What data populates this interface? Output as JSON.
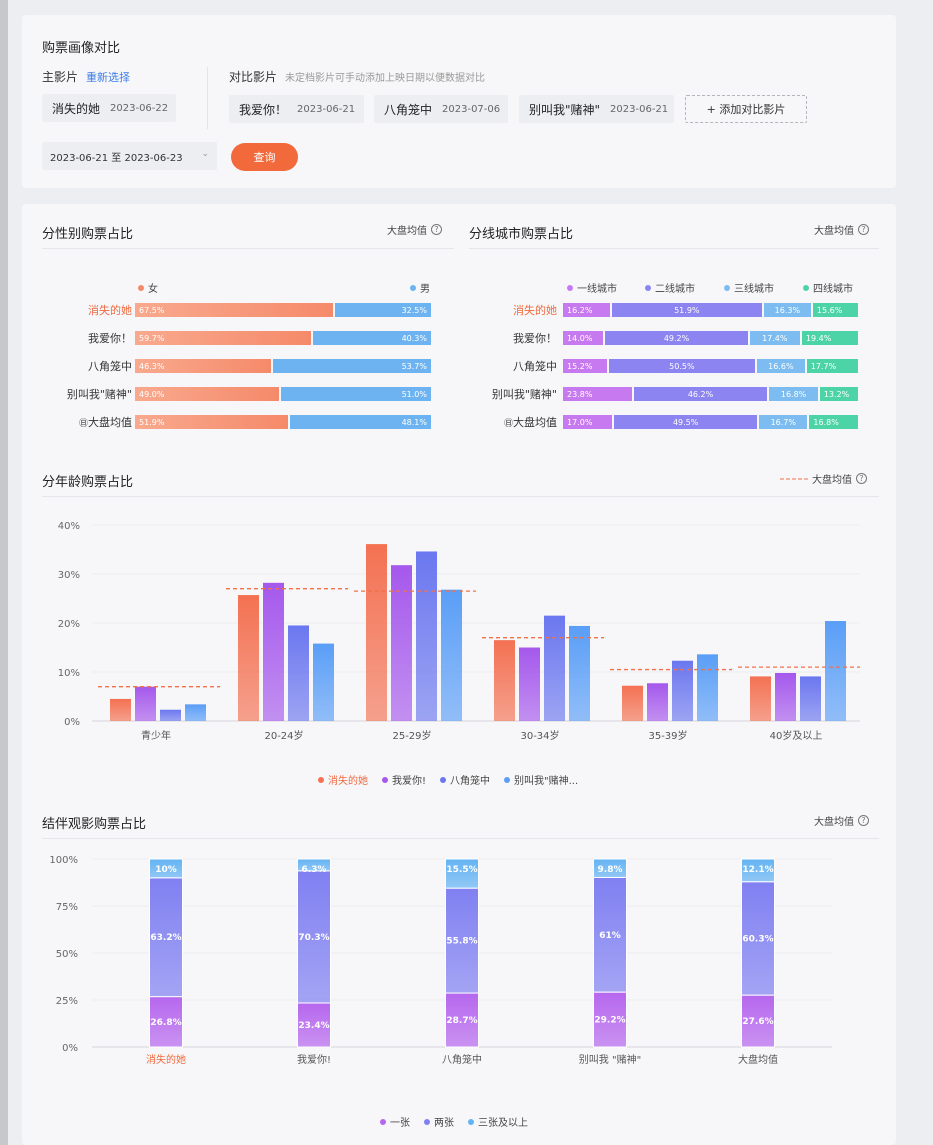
{
  "portrait": {
    "title": "购票画像对比",
    "main_label": "主影片",
    "reselect": "重新选择",
    "main_movie": {
      "name": "消失的她",
      "date": "2023-06-22"
    },
    "compare_label": "对比影片",
    "compare_hint": "未定档影片可手动添加上映日期以便数据对比",
    "compare_movies": [
      {
        "name": "我爱你！",
        "date": "2023-06-21"
      },
      {
        "name": "八角笼中",
        "date": "2023-07-06"
      },
      {
        "name": "别叫我\"赌神\"",
        "date": "2023-06-21"
      }
    ],
    "add_button": "+ 添加对比影片",
    "date_range": "2023-06-21 至 2023-06-23",
    "query_button": "查询"
  },
  "avg_label": "大盘均值",
  "gender": {
    "title": "分性别购票占比",
    "legend": [
      "女",
      "男"
    ],
    "colors": [
      "#f58a6a",
      "#6db3f2"
    ],
    "rows": [
      {
        "label": "消失的她",
        "values": [
          "67.5%",
          "32.5%"
        ],
        "fracs": [
          67.5,
          32.5
        ],
        "highlight": true
      },
      {
        "label": "我爱你！",
        "values": [
          "59.7%",
          "40.3%"
        ],
        "fracs": [
          59.7,
          40.3
        ]
      },
      {
        "label": "八角笼中",
        "values": [
          "46.3%",
          "53.7%"
        ],
        "fracs": [
          46.3,
          53.7
        ]
      },
      {
        "label": "别叫我\"赌神\"",
        "values": [
          "49.0%",
          "51.0%"
        ],
        "fracs": [
          49.0,
          51.0
        ]
      },
      {
        "label": "大盘均值",
        "values": [
          "51.9%",
          "48.1%"
        ],
        "fracs": [
          51.9,
          48.1
        ],
        "prefix": "㊐"
      }
    ]
  },
  "city": {
    "title": "分线城市购票占比",
    "legend": [
      "一线城市",
      "二线城市",
      "三线城市",
      "四线城市"
    ],
    "colors": [
      "#c77af0",
      "#8c84f0",
      "#7cbcf0",
      "#4cd4a6"
    ],
    "rows": [
      {
        "label": "消失的她",
        "values": [
          "16.2%",
          "51.9%",
          "16.3%",
          "15.6%"
        ],
        "fracs": [
          16.2,
          51.9,
          16.3,
          15.6
        ],
        "highlight": true
      },
      {
        "label": "我爱你！",
        "values": [
          "14.0%",
          "49.2%",
          "17.4%",
          "19.4%"
        ],
        "fracs": [
          14.0,
          49.2,
          17.4,
          19.4
        ]
      },
      {
        "label": "八角笼中",
        "values": [
          "15.2%",
          "50.5%",
          "16.6%",
          "17.7%"
        ],
        "fracs": [
          15.2,
          50.5,
          16.6,
          17.7
        ]
      },
      {
        "label": "别叫我\"赌神\"",
        "values": [
          "23.8%",
          "46.2%",
          "16.8%",
          "13.2%"
        ],
        "fracs": [
          23.8,
          46.2,
          16.8,
          13.2
        ]
      },
      {
        "label": "大盘均值",
        "values": [
          "17.0%",
          "49.5%",
          "16.7%",
          "16.8%"
        ],
        "fracs": [
          17.0,
          49.5,
          16.7,
          16.8
        ],
        "prefix": "㊐"
      }
    ]
  },
  "age": {
    "title": "分年龄购票占比",
    "legend_avg": "大盘均值",
    "legend": [
      "消失的她",
      "我爱你!",
      "八角笼中",
      "别叫我\"赌神..."
    ],
    "chart_data": {
      "type": "bar",
      "categories": [
        "青少年",
        "20-24岁",
        "25-29岁",
        "30-34岁",
        "35-39岁",
        "40岁及以上"
      ],
      "ylim": [
        0,
        40
      ],
      "yticks": [
        "0%",
        "10%",
        "20%",
        "30%",
        "40%"
      ],
      "series": [
        {
          "name": "消失的她",
          "values": [
            4.5,
            25.7,
            36.1,
            16.5,
            7.2,
            9.1
          ],
          "color": "#f47152"
        },
        {
          "name": "我爱你!",
          "values": [
            7.0,
            28.2,
            31.8,
            15.0,
            7.7,
            9.8
          ],
          "color": "#a558ec"
        },
        {
          "name": "八角笼中",
          "values": [
            2.3,
            19.5,
            34.6,
            21.5,
            12.3,
            9.1
          ],
          "color": "#6b77ef"
        },
        {
          "name": "别叫我\"赌神\"",
          "values": [
            3.4,
            15.8,
            26.8,
            19.4,
            13.6,
            20.4
          ],
          "color": "#5a9ef7"
        }
      ],
      "average": [
        7.0,
        27.0,
        26.5,
        17.0,
        10.5,
        11.0
      ]
    }
  },
  "companion": {
    "title": "结伴观影购票占比",
    "legend": [
      "一张",
      "两张",
      "三张及以上"
    ],
    "chart_data": {
      "type": "bar",
      "stacked": true,
      "categories": [
        "消失的她",
        "我爱你!",
        "八角笼中",
        "别叫我 \"赌神\"",
        "大盘均值"
      ],
      "yticks": [
        "0%",
        "25%",
        "50%",
        "75%",
        "100%"
      ],
      "series": [
        {
          "name": "一张",
          "values": [
            26.8,
            23.4,
            28.7,
            29.2,
            27.6
          ],
          "labels": [
            "26.8%",
            "23.4%",
            "28.7%",
            "29.2%",
            "27.6%"
          ],
          "color": "#b667ee"
        },
        {
          "name": "两张",
          "values": [
            63.2,
            70.3,
            55.8,
            61,
            60.3
          ],
          "labels": [
            "63.2%",
            "70.3%",
            "55.8%",
            "61%",
            "60.3%"
          ],
          "color": "#8080f2"
        },
        {
          "name": "三张及以上",
          "values": [
            10,
            6.3,
            15.5,
            9.8,
            12.1
          ],
          "labels": [
            "10%",
            "6.3%",
            "15.5%",
            "9.8%",
            "12.1%"
          ],
          "color": "#64b3f3"
        }
      ]
    }
  }
}
